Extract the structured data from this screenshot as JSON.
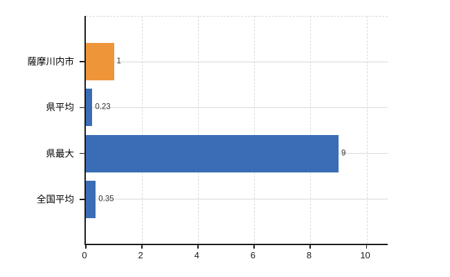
{
  "chart_data": {
    "type": "bar",
    "orientation": "horizontal",
    "title": "",
    "xlabel": "",
    "ylabel": "",
    "categories": [
      "薩摩川内市",
      "県平均",
      "県最大",
      "全国平均"
    ],
    "values": [
      1,
      0.23,
      9,
      0.35
    ],
    "value_labels": [
      "1",
      "0.23",
      "9",
      "0.35"
    ],
    "x_ticks": [
      0,
      2,
      4,
      6,
      8,
      10
    ],
    "xlim": [
      0,
      10.8
    ],
    "grid": true,
    "legend": false,
    "colors": {
      "bar_default": "#3a6db5",
      "bar_highlight": "#ef9539",
      "bar_color_per_category": [
        "#ef9539",
        "#3a6db5",
        "#3a6db5",
        "#3a6db5"
      ],
      "vertical_gridline": "#d8d8d8",
      "horizontal_gridline": "#d4dcd4",
      "axis": "#1a1a1a",
      "value_label_text": "#333333",
      "category_label_text": "#000000",
      "background": "#ffffff"
    }
  }
}
